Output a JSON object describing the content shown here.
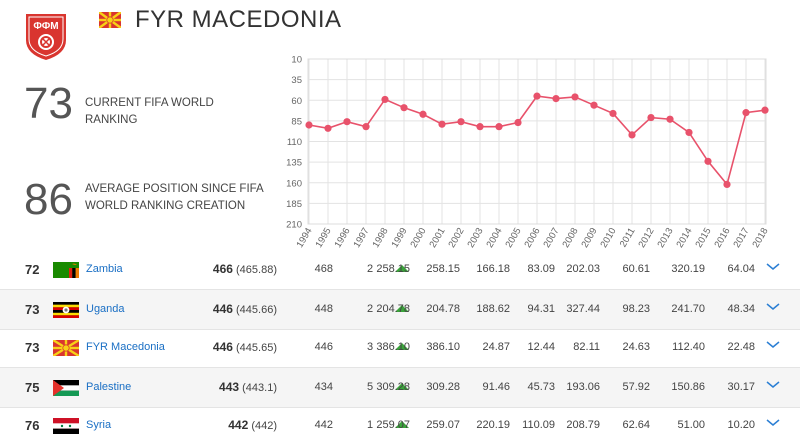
{
  "header": {
    "country": "FYR MACEDONIA",
    "crest_icon": "ffm-crest-icon",
    "crest_text": "ФФМ",
    "flag_icon": "macedonia-flag-icon",
    "colors": {
      "accent": "#e8526b",
      "crest_red": "#d9352f",
      "flag_yellow": "#f7d117"
    }
  },
  "stats": {
    "current_value": "73",
    "current_label": "CURRENT FIFA WORLD RANKING",
    "average_value": "86",
    "average_label": "AVERAGE POSITION SINCE FIFA WORLD RANKING CREATION"
  },
  "chart_data": {
    "type": "line",
    "title": "",
    "xlabel": "",
    "ylabel": "",
    "inverted_y": true,
    "ylim": [
      10,
      210
    ],
    "yticks": [
      "10",
      "35",
      "60",
      "85",
      "110",
      "135",
      "160",
      "185",
      "210"
    ],
    "x": [
      "1994",
      "1995",
      "1996",
      "1997",
      "1998",
      "1999",
      "2000",
      "2001",
      "2002",
      "2003",
      "2004",
      "2005",
      "2006",
      "2007",
      "2008",
      "2009",
      "2010",
      "2011",
      "2012",
      "2013",
      "2014",
      "2015",
      "2016",
      "2017",
      "2018"
    ],
    "series": [
      {
        "values": [
          90,
          94,
          86,
          92,
          59,
          69,
          77,
          89,
          86,
          92,
          92,
          87,
          55,
          58,
          56,
          66,
          76,
          102,
          81,
          83,
          99,
          134,
          162,
          75,
          72
        ],
        "color": "#e8526b"
      }
    ],
    "grid": true
  },
  "rows": [
    {
      "rank": "72",
      "team": "Zambia",
      "flag": "zambia-flag-icon",
      "points": "466",
      "points_exact": "(465.88)",
      "prev": "468",
      "move": "2",
      "c1": "258.15",
      "c2": "258.15",
      "c3": "166.18",
      "c4": "83.09",
      "c5": "202.03",
      "c6": "60.61",
      "c7": "320.19",
      "c8": "64.04"
    },
    {
      "rank": "73",
      "team": "Uganda",
      "flag": "uganda-flag-icon",
      "points": "446",
      "points_exact": "(445.66)",
      "prev": "448",
      "move": "2",
      "c1": "204.78",
      "c2": "204.78",
      "c3": "188.62",
      "c4": "94.31",
      "c5": "327.44",
      "c6": "98.23",
      "c7": "241.70",
      "c8": "48.34"
    },
    {
      "rank": "73",
      "team": "FYR Macedonia",
      "flag": "macedonia-flag-icon",
      "points": "446",
      "points_exact": "(445.65)",
      "prev": "446",
      "move": "3",
      "c1": "386.10",
      "c2": "386.10",
      "c3": "24.87",
      "c4": "12.44",
      "c5": "82.11",
      "c6": "24.63",
      "c7": "112.40",
      "c8": "22.48"
    },
    {
      "rank": "75",
      "team": "Palestine",
      "flag": "palestine-flag-icon",
      "points": "443",
      "points_exact": "(443.1)",
      "prev": "434",
      "move": "5",
      "c1": "309.28",
      "c2": "309.28",
      "c3": "91.46",
      "c4": "45.73",
      "c5": "193.06",
      "c6": "57.92",
      "c7": "150.86",
      "c8": "30.17"
    },
    {
      "rank": "76",
      "team": "Syria",
      "flag": "syria-flag-icon",
      "points": "442",
      "points_exact": "(442)",
      "prev": "442",
      "move": "1",
      "c1": "259.07",
      "c2": "259.07",
      "c3": "220.19",
      "c4": "110.09",
      "c5": "208.79",
      "c6": "62.64",
      "c7": "51.00",
      "c8": "10.20"
    }
  ]
}
